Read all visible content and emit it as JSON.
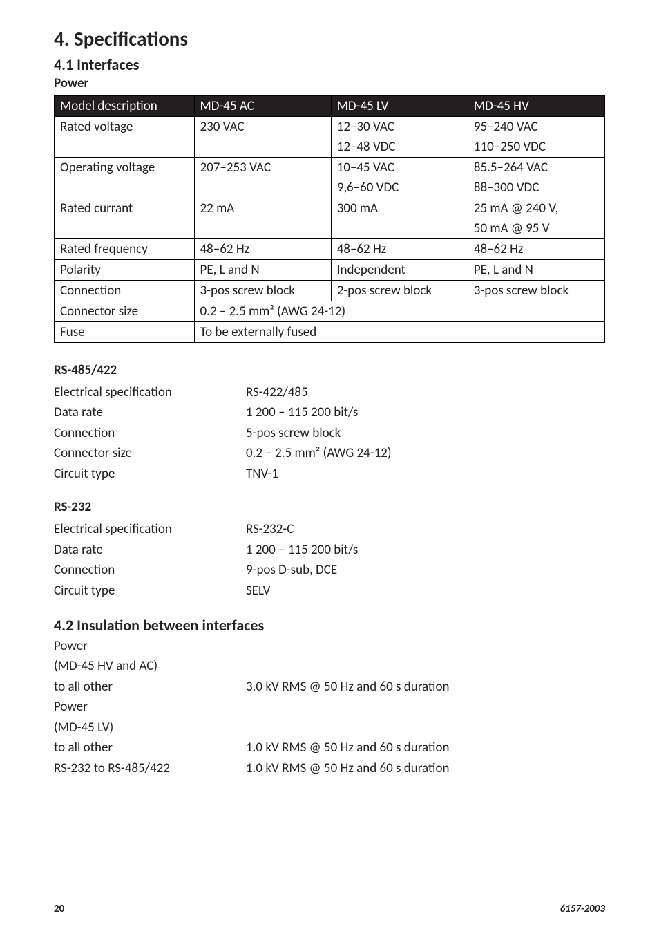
{
  "headings": {
    "h1": "4. Specifications",
    "h2_interfaces": "4.1 Interfaces",
    "h3_power": "Power",
    "h3_rs485": "RS-485/422",
    "h3_rs232": "RS-232",
    "h2_insulation": "4.2 Insulation between interfaces"
  },
  "power_table": {
    "headers": [
      "Model description",
      "MD-45 AC",
      "MD-45 LV",
      "MD-45 HV"
    ],
    "rows": [
      [
        "Rated voltage",
        "230 VAC",
        "12–30 VAC",
        "95–240 VAC"
      ],
      [
        "",
        "",
        "12–48 VDC",
        "110–250 VDC"
      ],
      [
        "Operating voltage",
        "207–253 VAC",
        "10–45 VAC",
        "85.5–264 VAC"
      ],
      [
        "",
        "",
        "9,6–60 VDC",
        "88–300 VDC"
      ],
      [
        "Rated currant",
        "22 mA",
        "300 mA",
        "25 mA @ 240 V,"
      ],
      [
        "",
        "",
        "",
        "50 mA @ 95 V"
      ],
      [
        "Rated frequency",
        "48–62 Hz",
        "48–62 Hz",
        "48–62 Hz"
      ],
      [
        "Polarity",
        "PE, L and N",
        "Independent",
        "PE, L and N"
      ],
      [
        "Connection",
        "3-pos screw block",
        "2-pos screw block",
        "3-pos screw block"
      ],
      [
        "Connector size",
        "0.2 – 2.5 mm² (AWG 24-12)",
        "",
        ""
      ],
      [
        "Fuse",
        "To be externally fused",
        "",
        ""
      ]
    ],
    "colspan_rows": {
      "9": 3,
      "10": 3
    },
    "noborder_pairs": [
      [
        0,
        1
      ],
      [
        2,
        3
      ],
      [
        4,
        5
      ]
    ]
  },
  "rs485": [
    {
      "label": "Electrical specification",
      "value": "RS-422/485"
    },
    {
      "label": "Data rate",
      "value": "1 200 – 115 200 bit/s"
    },
    {
      "label": "Connection",
      "value": "5-pos screw block"
    },
    {
      "label": "Connector size",
      "value": "0.2 – 2.5 mm² (AWG 24-12)"
    },
    {
      "label": "Circuit type",
      "value": "TNV-1"
    }
  ],
  "rs232": [
    {
      "label": "Electrical specification",
      "value": "RS-232-C"
    },
    {
      "label": "Data rate",
      "value": "1 200 – 115 200 bit/s"
    },
    {
      "label": "Connection",
      "value": "9-pos D-sub, DCE"
    },
    {
      "label": "Circuit type",
      "value": "SELV"
    }
  ],
  "insulation": [
    {
      "label": "Power",
      "value": ""
    },
    {
      "label": "(MD-45 HV and AC)",
      "value": ""
    },
    {
      "label": "to all other",
      "value": "3.0 kV RMS @ 50 Hz and 60 s duration"
    },
    {
      "label": "Power",
      "value": ""
    },
    {
      "label": "(MD-45 LV)",
      "value": ""
    },
    {
      "label": "to all other",
      "value": "1.0 kV RMS @ 50 Hz and 60 s duration"
    },
    {
      "label": "RS-232 to RS-485/422",
      "value": "1.0 kV RMS @ 50 Hz and 60 s duration"
    }
  ],
  "footer": {
    "page": "20",
    "docid": "6157-2003"
  }
}
